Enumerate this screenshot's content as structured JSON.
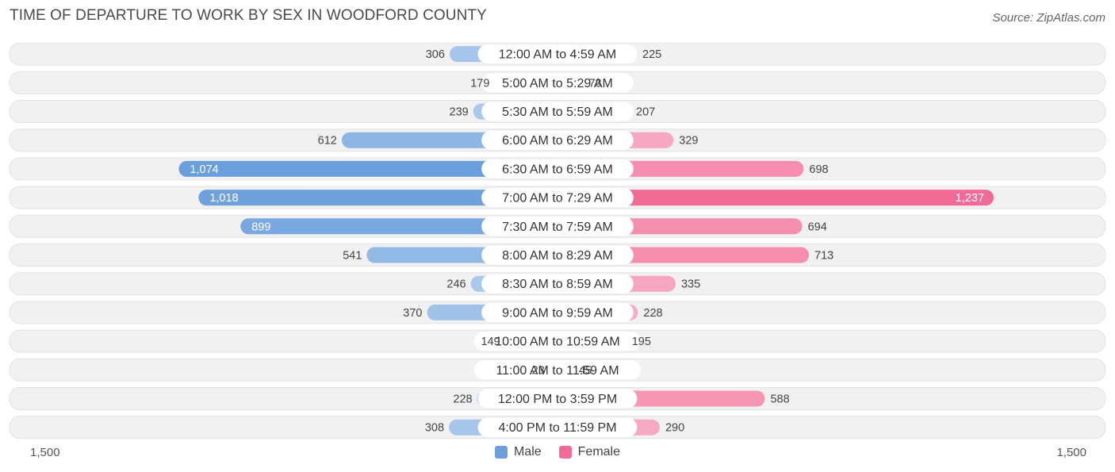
{
  "title": "TIME OF DEPARTURE TO WORK BY SEX IN WOODFORD COUNTY",
  "source": "Source: ZipAtlas.com",
  "axis": {
    "left_label": "1,500",
    "right_label": "1,500"
  },
  "legend": {
    "male_label": "Male",
    "female_label": "Female"
  },
  "colors": {
    "male": "#6b9fdc",
    "female": "#f26b97"
  },
  "chart_data": {
    "type": "bar",
    "title": "TIME OF DEPARTURE TO WORK BY SEX IN WOODFORD COUNTY",
    "orientation": "horizontal-diverging",
    "xlim": [
      -1500,
      1500
    ],
    "categories": [
      "12:00 AM to 4:59 AM",
      "5:00 AM to 5:29 AM",
      "5:30 AM to 5:59 AM",
      "6:00 AM to 6:29 AM",
      "6:30 AM to 6:59 AM",
      "7:00 AM to 7:29 AM",
      "7:30 AM to 7:59 AM",
      "8:00 AM to 8:29 AM",
      "8:30 AM to 8:59 AM",
      "9:00 AM to 9:59 AM",
      "10:00 AM to 10:59 AM",
      "11:00 AM to 11:59 AM",
      "12:00 PM to 3:59 PM",
      "4:00 PM to 11:59 PM"
    ],
    "series": [
      {
        "name": "Male",
        "values": [
          306,
          179,
          239,
          612,
          1074,
          1018,
          899,
          541,
          246,
          370,
          149,
          23,
          228,
          308
        ],
        "labels": [
          "306",
          "179",
          "239",
          "612",
          "1,074",
          "1,018",
          "899",
          "541",
          "246",
          "370",
          "149",
          "23",
          "228",
          "308"
        ]
      },
      {
        "name": "Female",
        "values": [
          225,
          73,
          207,
          329,
          698,
          1237,
          694,
          713,
          335,
          228,
          195,
          45,
          588,
          290
        ],
        "labels": [
          "225",
          "73",
          "207",
          "329",
          "698",
          "1,237",
          "694",
          "713",
          "335",
          "228",
          "195",
          "45",
          "588",
          "290"
        ]
      }
    ]
  }
}
